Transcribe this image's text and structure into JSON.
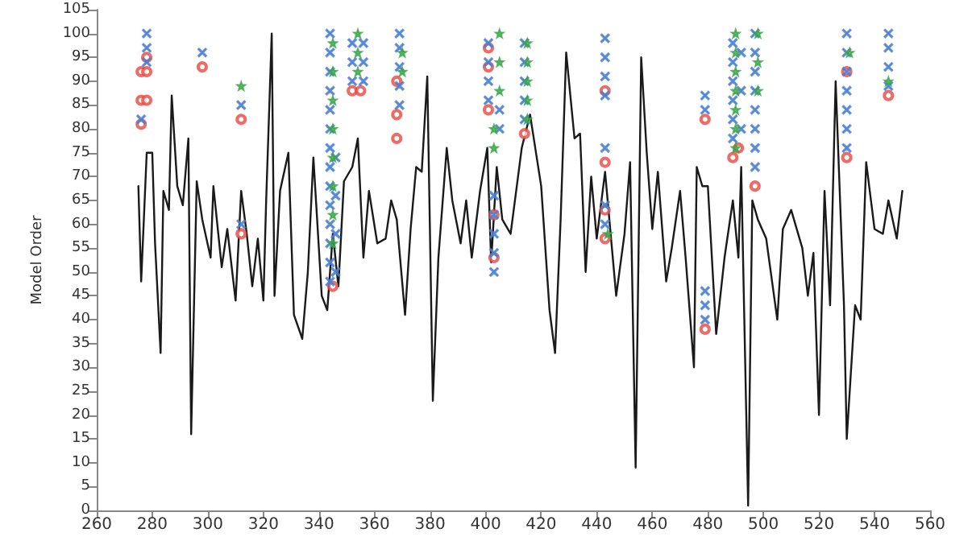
{
  "chart_data": {
    "type": "line",
    "ylabel": "Model Order",
    "xlim": [
      260,
      560
    ],
    "xticks": [
      260,
      280,
      300,
      320,
      340,
      360,
      380,
      400,
      420,
      440,
      460,
      480,
      500,
      520,
      540,
      560
    ],
    "ylim": [
      0,
      105
    ],
    "yticks": [
      0,
      5,
      10,
      15,
      20,
      25,
      30,
      35,
      40,
      45,
      50,
      55,
      60,
      65,
      70,
      75,
      80,
      85,
      90,
      95,
      100,
      105
    ],
    "grid": false,
    "series": [
      {
        "color": "#1a1a1a",
        "marker": "none",
        "line_style": "solid",
        "x": [
          275,
          276,
          278,
          280,
          281,
          283,
          284,
          286,
          287,
          289,
          291,
          293,
          294,
          296,
          298,
          301,
          302,
          305,
          307,
          310,
          312,
          314,
          316,
          318,
          320,
          321,
          323,
          324,
          326,
          329,
          331,
          334,
          336,
          338,
          341,
          343,
          345,
          347,
          349,
          352,
          354,
          356,
          358,
          361,
          364,
          366,
          368,
          371,
          373,
          375,
          377,
          379,
          381,
          383,
          386,
          388,
          391,
          393,
          395,
          398,
          400.6,
          402,
          404,
          406,
          409,
          413,
          416,
          420,
          423,
          425,
          427,
          429,
          432,
          434,
          436,
          438,
          440,
          443,
          445,
          447,
          450,
          452,
          454,
          456,
          458,
          460,
          462,
          465,
          467,
          470,
          472,
          475,
          476,
          478,
          480,
          483,
          486,
          489,
          491,
          492,
          494.5,
          496,
          498,
          501,
          505,
          507,
          510,
          514,
          516,
          518,
          520,
          522,
          524,
          526,
          529,
          530,
          533,
          535,
          537,
          540,
          543,
          545,
          548,
          550
        ],
        "values": [
          68,
          48,
          75,
          75,
          56,
          33,
          67,
          63,
          87,
          68,
          64,
          78,
          16,
          69,
          61,
          53,
          68,
          51,
          59,
          44,
          67,
          58,
          47,
          57,
          44,
          65,
          100,
          45,
          67,
          75,
          41,
          36,
          50,
          74,
          45,
          42,
          58,
          47,
          69,
          72,
          78,
          53,
          67,
          56,
          57,
          65,
          61,
          41,
          59,
          72,
          71,
          91,
          23,
          53,
          76,
          65,
          56,
          65,
          53,
          67,
          76,
          52,
          72,
          61,
          58,
          76,
          83,
          68,
          42,
          33,
          61,
          96,
          78,
          79,
          50,
          70,
          57,
          71,
          58,
          45,
          58,
          73,
          9,
          95,
          75,
          59,
          71,
          48,
          55,
          67,
          53,
          30,
          72,
          68,
          68,
          37,
          53,
          65,
          53,
          72,
          1,
          65,
          61,
          57,
          40,
          59,
          63,
          55,
          45,
          54,
          20,
          67,
          43,
          90,
          43,
          15,
          43,
          40,
          73,
          59,
          58,
          65,
          57,
          67
        ]
      },
      {
        "type": "scatter",
        "color": "#e8473f",
        "marker": "circle",
        "x": [
          276,
          276,
          278,
          276,
          278,
          278,
          298,
          312,
          312,
          345,
          352,
          355,
          368,
          368,
          368,
          401,
          401,
          401,
          403,
          403,
          414,
          443,
          443,
          443,
          443,
          479,
          479,
          489,
          491,
          497,
          530,
          530,
          545
        ],
        "values": [
          81,
          86,
          86,
          92,
          92,
          95,
          93,
          82,
          58,
          47,
          88,
          88,
          78,
          83,
          90,
          84,
          93,
          97,
          53,
          62,
          79,
          57,
          63,
          73,
          88,
          38,
          82,
          74,
          76,
          68,
          74,
          92,
          87
        ]
      },
      {
        "type": "scatter",
        "color": "#4a7fd4",
        "marker": "cross",
        "x": [
          276,
          278,
          278,
          278,
          298,
          312,
          312,
          344,
          344,
          344,
          344,
          344,
          344,
          344,
          344,
          344,
          344,
          344,
          344,
          344,
          344,
          346,
          346,
          346,
          346,
          352,
          352,
          352,
          356,
          356,
          356,
          369,
          369,
          369,
          369,
          369,
          401,
          401,
          401,
          401,
          403,
          403,
          403,
          403,
          403,
          405,
          405,
          414,
          414,
          414,
          414,
          414,
          443,
          443,
          443,
          443,
          443,
          443,
          443,
          479,
          479,
          479,
          479,
          479,
          489,
          489,
          489,
          489,
          489,
          489,
          492,
          492,
          492,
          497,
          497,
          497,
          497,
          497,
          497,
          497,
          497,
          530,
          530,
          530,
          530,
          530,
          530,
          530,
          545,
          545,
          545,
          545
        ],
        "values": [
          82,
          94,
          97,
          100,
          96,
          85,
          60,
          48,
          52,
          56,
          60,
          64,
          68,
          72,
          76,
          80,
          84,
          88,
          92,
          96,
          100,
          50,
          58,
          66,
          74,
          90,
          94,
          98,
          90,
          94,
          98,
          85,
          89,
          93,
          97,
          100,
          86,
          90,
          94,
          98,
          50,
          54,
          58,
          62,
          66,
          80,
          84,
          82,
          86,
          90,
          94,
          98,
          60,
          64,
          76,
          87,
          91,
          95,
          99,
          40,
          43,
          46,
          84,
          87,
          78,
          82,
          86,
          90,
          94,
          98,
          80,
          88,
          96,
          72,
          76,
          80,
          84,
          88,
          92,
          96,
          100,
          76,
          80,
          84,
          88,
          92,
          96,
          100,
          89,
          93,
          97,
          100
        ]
      },
      {
        "type": "scatter",
        "color": "#3aa64a",
        "marker": "star",
        "x": [
          312,
          345,
          345,
          345,
          345,
          345,
          345,
          345,
          345,
          354,
          354,
          354,
          370,
          370,
          403,
          403,
          405,
          405,
          405,
          415,
          415,
          415,
          415,
          415,
          444,
          490,
          490,
          490,
          490,
          490,
          490,
          490,
          498,
          498,
          498,
          531,
          545
        ],
        "values": [
          89,
          56,
          62,
          68,
          74,
          80,
          86,
          92,
          98,
          92,
          96,
          100,
          92,
          96,
          76,
          80,
          88,
          94,
          100,
          82,
          86,
          90,
          94,
          98,
          58,
          76,
          80,
          84,
          88,
          92,
          96,
          100,
          88,
          94,
          100,
          96,
          90
        ]
      }
    ]
  }
}
